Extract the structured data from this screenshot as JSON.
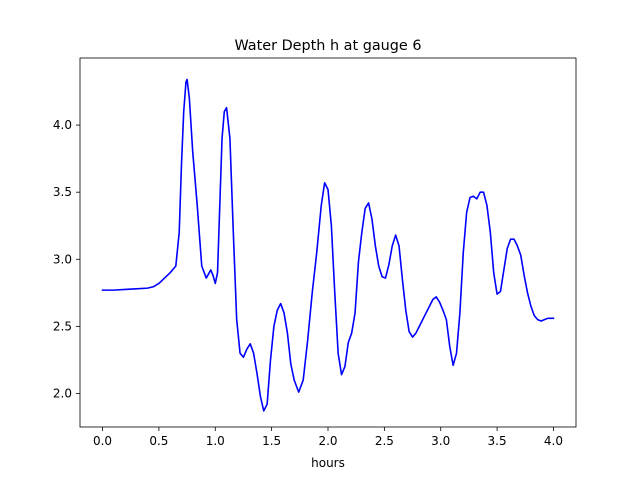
{
  "chart_data": {
    "type": "line",
    "title": "Water Depth h at gauge 6",
    "xlabel": "hours",
    "ylabel": "",
    "xlim": [
      -0.2,
      4.2
    ],
    "ylim": [
      1.75,
      4.5
    ],
    "x_ticks": [
      0.0,
      0.5,
      1.0,
      1.5,
      2.0,
      2.5,
      3.0,
      3.5,
      4.0
    ],
    "x_tick_labels": [
      "0.0",
      "0.5",
      "1.0",
      "1.5",
      "2.0",
      "2.5",
      "3.0",
      "3.5",
      "4.0"
    ],
    "y_ticks": [
      2.0,
      2.5,
      3.0,
      3.5,
      4.0
    ],
    "y_tick_labels": [
      "2.0",
      "2.5",
      "3.0",
      "3.5",
      "4.0"
    ],
    "grid": false,
    "series": [
      {
        "color": "#0000ff",
        "x": [
          0.0,
          0.1,
          0.2,
          0.3,
          0.4,
          0.45,
          0.5,
          0.55,
          0.6,
          0.65,
          0.68,
          0.7,
          0.72,
          0.74,
          0.75,
          0.77,
          0.8,
          0.84,
          0.88,
          0.92,
          0.96,
          0.98,
          1.0,
          1.02,
          1.04,
          1.06,
          1.08,
          1.1,
          1.13,
          1.16,
          1.19,
          1.22,
          1.25,
          1.28,
          1.31,
          1.34,
          1.37,
          1.4,
          1.43,
          1.46,
          1.49,
          1.52,
          1.55,
          1.58,
          1.61,
          1.64,
          1.67,
          1.7,
          1.74,
          1.78,
          1.82,
          1.86,
          1.9,
          1.94,
          1.97,
          2.0,
          2.03,
          2.06,
          2.09,
          2.12,
          2.15,
          2.18,
          2.21,
          2.24,
          2.27,
          2.3,
          2.33,
          2.36,
          2.39,
          2.42,
          2.45,
          2.48,
          2.51,
          2.54,
          2.57,
          2.6,
          2.63,
          2.66,
          2.69,
          2.72,
          2.75,
          2.78,
          2.81,
          2.84,
          2.87,
          2.9,
          2.93,
          2.96,
          2.99,
          3.02,
          3.05,
          3.08,
          3.11,
          3.14,
          3.17,
          3.2,
          3.23,
          3.26,
          3.29,
          3.32,
          3.35,
          3.38,
          3.41,
          3.44,
          3.47,
          3.5,
          3.53,
          3.56,
          3.59,
          3.62,
          3.65,
          3.68,
          3.71,
          3.74,
          3.77,
          3.8,
          3.83,
          3.86,
          3.89,
          3.92,
          3.95,
          3.98,
          4.0
        ],
        "y": [
          2.77,
          2.77,
          2.775,
          2.78,
          2.785,
          2.795,
          2.82,
          2.86,
          2.9,
          2.95,
          3.2,
          3.7,
          4.1,
          4.32,
          4.34,
          4.2,
          3.8,
          3.4,
          2.95,
          2.86,
          2.92,
          2.88,
          2.82,
          2.9,
          3.4,
          3.9,
          4.1,
          4.13,
          3.9,
          3.2,
          2.55,
          2.3,
          2.27,
          2.33,
          2.37,
          2.3,
          2.15,
          1.98,
          1.87,
          1.92,
          2.25,
          2.5,
          2.62,
          2.67,
          2.6,
          2.45,
          2.22,
          2.1,
          2.01,
          2.1,
          2.4,
          2.75,
          3.05,
          3.4,
          3.57,
          3.52,
          3.25,
          2.75,
          2.3,
          2.14,
          2.2,
          2.38,
          2.45,
          2.6,
          2.98,
          3.2,
          3.38,
          3.42,
          3.3,
          3.1,
          2.95,
          2.87,
          2.86,
          2.96,
          3.1,
          3.18,
          3.1,
          2.85,
          2.62,
          2.46,
          2.42,
          2.45,
          2.5,
          2.55,
          2.6,
          2.65,
          2.7,
          2.72,
          2.68,
          2.62,
          2.55,
          2.35,
          2.21,
          2.3,
          2.6,
          3.05,
          3.35,
          3.46,
          3.47,
          3.45,
          3.5,
          3.5,
          3.4,
          3.2,
          2.9,
          2.74,
          2.76,
          2.92,
          3.08,
          3.15,
          3.15,
          3.1,
          3.03,
          2.88,
          2.75,
          2.65,
          2.58,
          2.55,
          2.54,
          2.55,
          2.56,
          2.56,
          2.56
        ]
      }
    ]
  }
}
